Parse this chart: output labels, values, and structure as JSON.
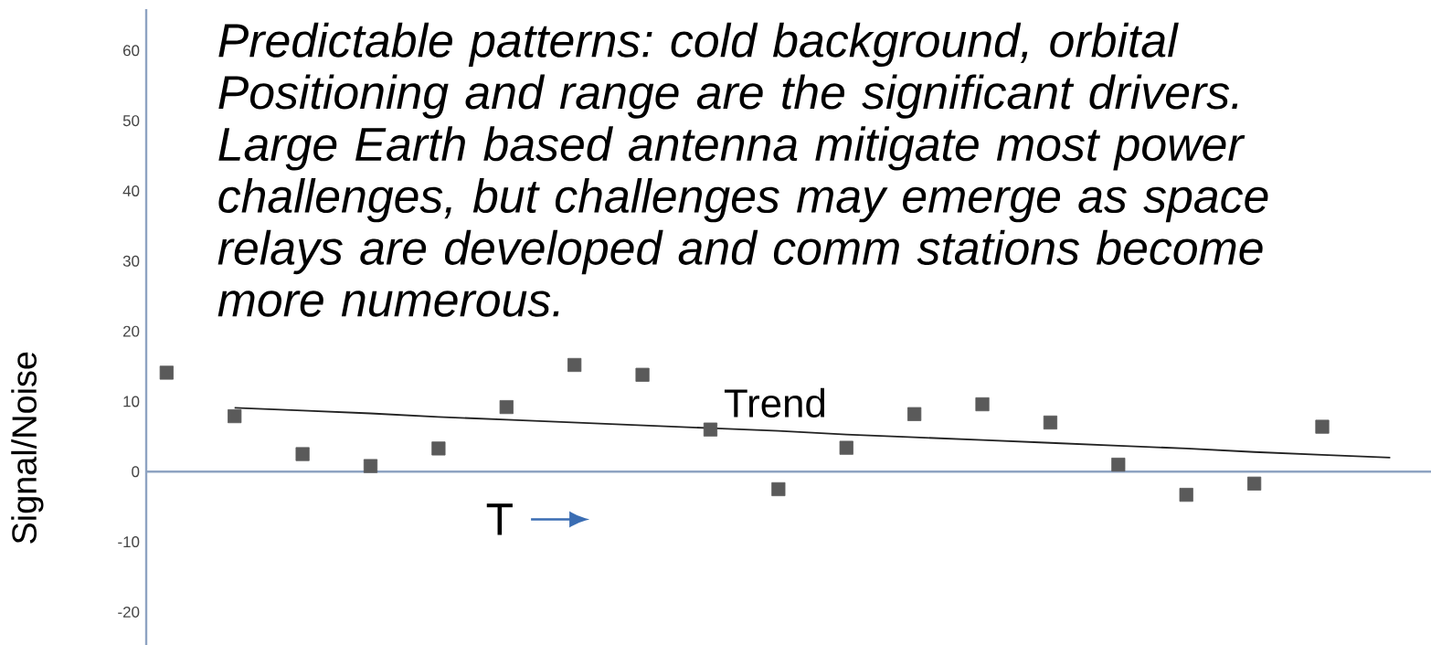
{
  "chart_data": {
    "type": "scatter",
    "annotations": [
      "Predictable patterns: cold background, orbital Positioning and range are the significant drivers. Large Earth based antenna mitigate most power challenges, but challenges may emerge as space relays are developed and comm stations become more numerous.",
      "Trend"
    ],
    "xlabel": "T",
    "ylabel": "Signal/Noise",
    "categories": [
      null,
      null,
      null,
      null,
      null,
      null,
      null,
      null,
      null,
      null,
      null,
      null,
      null,
      null,
      null,
      null,
      null,
      null,
      null
    ],
    "series": [
      {
        "color": "#5a5a5a",
        "marker": "square",
        "values": [
          14.1,
          7.9,
          2.5,
          0.8,
          3.3,
          9.2,
          15.2,
          13.8,
          6.0,
          -2.5,
          3.4,
          8.2,
          9.6,
          7.0,
          1.0,
          -3.3,
          -1.7,
          6.4,
          null
        ]
      },
      {
        "type": "line",
        "color": "#222222",
        "line_style": "solid",
        "marker": "none",
        "values": [
          null,
          9.1,
          8.7,
          8.3,
          7.8,
          7.4,
          7.0,
          6.6,
          6.2,
          5.8,
          5.3,
          4.9,
          4.5,
          4.1,
          3.7,
          3.3,
          2.8,
          2.4,
          2.0
        ]
      }
    ],
    "ref_lines": [
      {
        "axis": "y",
        "value": 0,
        "color": "#8ea3c2"
      }
    ],
    "ylim": [
      -24.7,
      65.9
    ],
    "yticks": [
      60,
      50,
      40,
      30,
      20,
      10,
      0,
      -10,
      -20
    ],
    "tick_labels": "y"
  }
}
